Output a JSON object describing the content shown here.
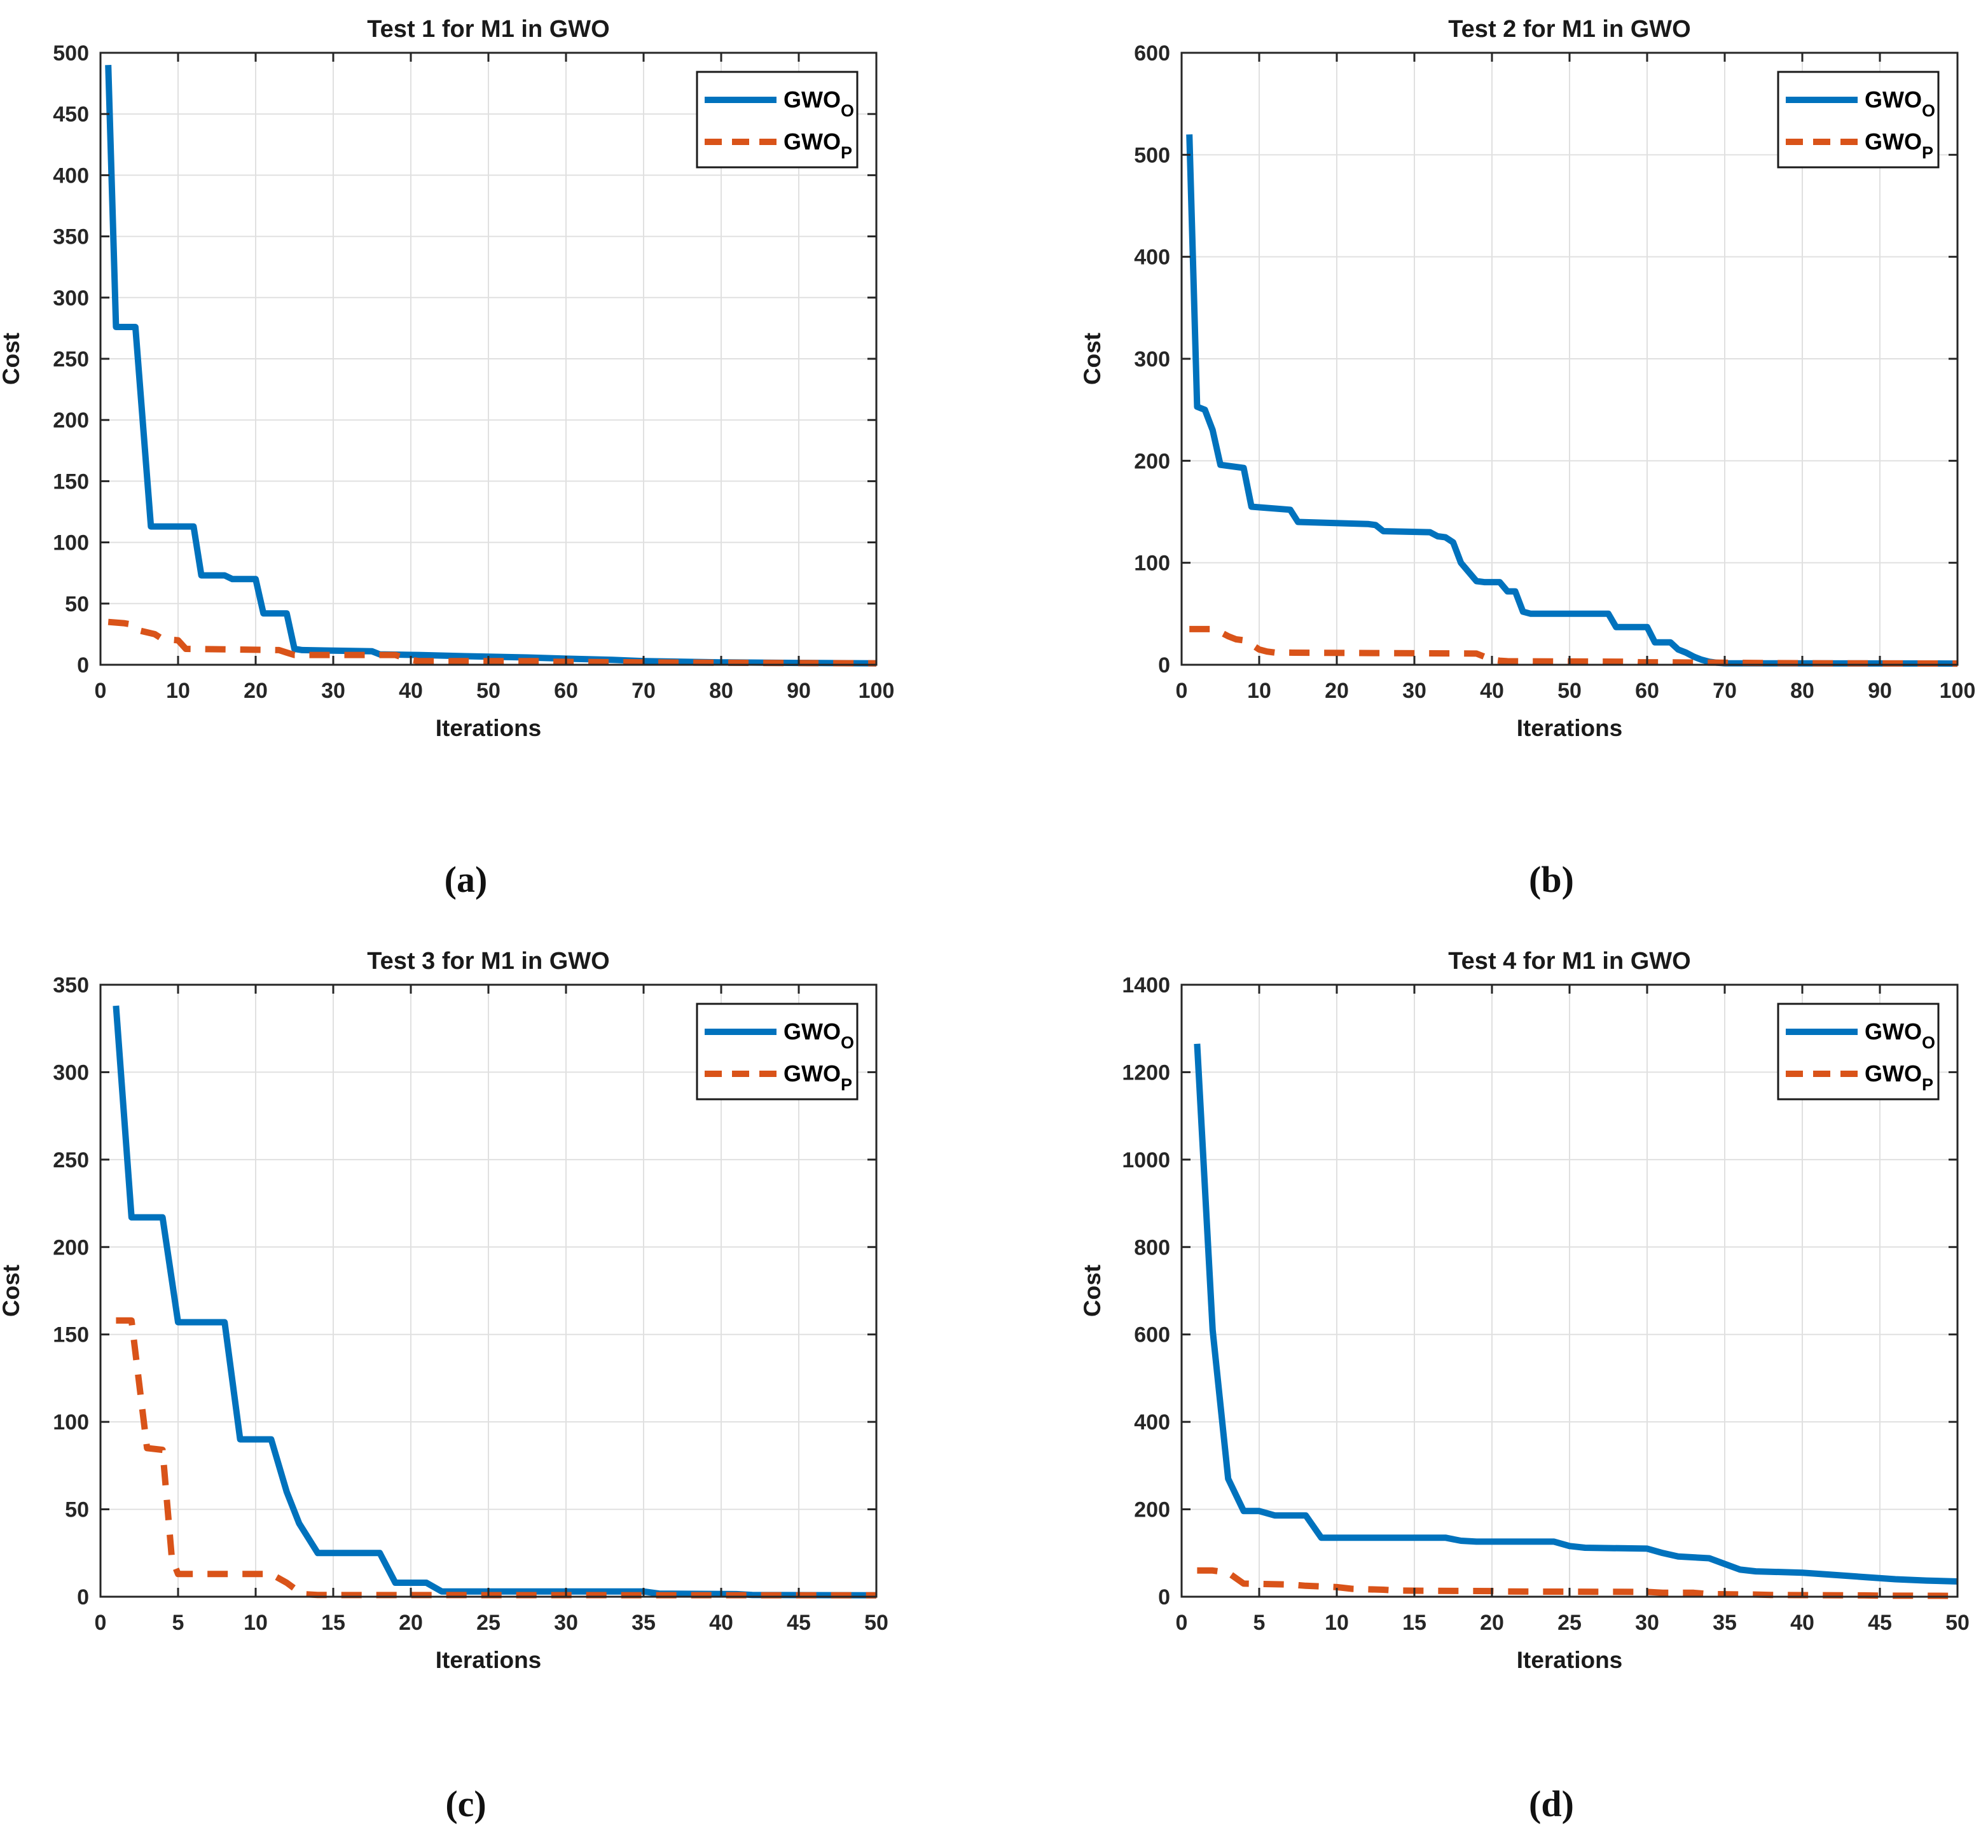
{
  "figure": {
    "background": "#ffffff",
    "axis_color": "#262626",
    "grid_color": "#e0e0e0",
    "accent_blue": "#0072BD",
    "accent_orange": "#D95319"
  },
  "chart_data": [
    {
      "type": "line",
      "title": "Test 1 for M1 in GWO",
      "panel_label": "(a)",
      "xlabel": "Iterations",
      "ylabel": "Cost",
      "xlim": [
        0,
        100
      ],
      "ylim": [
        0,
        500
      ],
      "xticks": [
        0,
        10,
        20,
        30,
        40,
        50,
        60,
        70,
        80,
        90,
        100
      ],
      "yticks": [
        0,
        50,
        100,
        150,
        200,
        250,
        300,
        350,
        400,
        450,
        500
      ],
      "grid": true,
      "legend": {
        "position": "top-right",
        "entries": [
          {
            "label": "GWO",
            "subscript": "O",
            "color": "#0072BD",
            "line_style": "solid"
          },
          {
            "label": "GWO",
            "subscript": "P",
            "color": "#D95319",
            "line_style": "dashed"
          }
        ]
      },
      "series": [
        {
          "name": "GWO_O",
          "color": "#0072BD",
          "style": "solid",
          "points": [
            [
              1,
              490
            ],
            [
              2,
              276
            ],
            [
              4.5,
              276
            ],
            [
              6.5,
              113
            ],
            [
              12,
              113
            ],
            [
              13,
              73
            ],
            [
              16,
              73
            ],
            [
              17,
              70
            ],
            [
              20,
              70
            ],
            [
              21,
              42
            ],
            [
              24,
              42
            ],
            [
              25,
              13
            ],
            [
              26,
              12
            ],
            [
              35,
              11
            ],
            [
              36,
              8.5
            ],
            [
              41,
              8
            ],
            [
              47,
              7
            ],
            [
              55,
              6
            ],
            [
              60,
              5
            ],
            [
              66,
              4
            ],
            [
              70,
              3
            ],
            [
              80,
              2
            ],
            [
              90,
              1.5
            ],
            [
              100,
              1.2
            ]
          ]
        },
        {
          "name": "GWO_P",
          "color": "#D95319",
          "style": "dashed",
          "points": [
            [
              1,
              35
            ],
            [
              3,
              34
            ],
            [
              4,
              33
            ],
            [
              5,
              28
            ],
            [
              7,
              25
            ],
            [
              8,
              21
            ],
            [
              10,
              20
            ],
            [
              11,
              13
            ],
            [
              23,
              12
            ],
            [
              24,
              10
            ],
            [
              25,
              8
            ],
            [
              38,
              8
            ],
            [
              39,
              6
            ],
            [
              40,
              4
            ],
            [
              41,
              3
            ],
            [
              57,
              3
            ],
            [
              58,
              2.5
            ],
            [
              70,
              2
            ],
            [
              85,
              1.5
            ],
            [
              100,
              1.2
            ]
          ]
        }
      ]
    },
    {
      "type": "line",
      "title": "Test 2 for M1 in GWO",
      "panel_label": "(b)",
      "xlabel": "Iterations",
      "ylabel": "Cost",
      "xlim": [
        0,
        100
      ],
      "ylim": [
        0,
        600
      ],
      "xticks": [
        0,
        10,
        20,
        30,
        40,
        50,
        60,
        70,
        80,
        90,
        100
      ],
      "yticks": [
        0,
        100,
        200,
        300,
        400,
        500,
        600
      ],
      "grid": true,
      "legend": {
        "position": "top-right",
        "entries": [
          {
            "label": "GWO",
            "subscript": "O",
            "color": "#0072BD",
            "line_style": "solid"
          },
          {
            "label": "GWO",
            "subscript": "P",
            "color": "#D95319",
            "line_style": "dashed"
          }
        ]
      },
      "series": [
        {
          "name": "GWO_O",
          "color": "#0072BD",
          "style": "solid",
          "points": [
            [
              1,
              520
            ],
            [
              2,
              253
            ],
            [
              3,
              250
            ],
            [
              4,
              230
            ],
            [
              5,
              196
            ],
            [
              8,
              193
            ],
            [
              9,
              155
            ],
            [
              14,
              152
            ],
            [
              15,
              140
            ],
            [
              24,
              138
            ],
            [
              25,
              137
            ],
            [
              26,
              131
            ],
            [
              32,
              130
            ],
            [
              33,
              126
            ],
            [
              34,
              125
            ],
            [
              35,
              120
            ],
            [
              36,
              100
            ],
            [
              37,
              91
            ],
            [
              38,
              82
            ],
            [
              39,
              81
            ],
            [
              41,
              81
            ],
            [
              42,
              72
            ],
            [
              43,
              72
            ],
            [
              44,
              52
            ],
            [
              45,
              50
            ],
            [
              55,
              50
            ],
            [
              56,
              37
            ],
            [
              60,
              37
            ],
            [
              61,
              22
            ],
            [
              63,
              22
            ],
            [
              64,
              15
            ],
            [
              65,
              12
            ],
            [
              66,
              8
            ],
            [
              67,
              5
            ],
            [
              68,
              3
            ],
            [
              69,
              2
            ],
            [
              70,
              1.5
            ],
            [
              100,
              1.2
            ]
          ]
        },
        {
          "name": "GWO_P",
          "color": "#D95319",
          "style": "dashed",
          "points": [
            [
              1,
              35
            ],
            [
              4,
              35
            ],
            [
              5,
              32
            ],
            [
              6,
              28
            ],
            [
              7,
              25
            ],
            [
              8,
              24
            ],
            [
              9,
              20
            ],
            [
              10,
              15
            ],
            [
              11,
              13
            ],
            [
              12,
              12
            ],
            [
              38,
              11
            ],
            [
              39,
              8
            ],
            [
              40,
              5
            ],
            [
              41,
              4
            ],
            [
              42,
              3.5
            ],
            [
              58,
              3
            ],
            [
              59,
              2.5
            ],
            [
              70,
              2
            ],
            [
              80,
              1.5
            ],
            [
              100,
              1.2
            ]
          ]
        }
      ]
    },
    {
      "type": "line",
      "title": "Test 3 for M1 in GWO",
      "panel_label": "(c)",
      "xlabel": "Iterations",
      "ylabel": "Cost",
      "xlim": [
        0,
        50
      ],
      "ylim": [
        0,
        350
      ],
      "xticks": [
        0,
        5,
        10,
        15,
        20,
        25,
        30,
        35,
        40,
        45,
        50
      ],
      "yticks": [
        0,
        50,
        100,
        150,
        200,
        250,
        300,
        350
      ],
      "grid": true,
      "legend": {
        "position": "top-right",
        "entries": [
          {
            "label": "GWO",
            "subscript": "O",
            "color": "#0072BD",
            "line_style": "solid"
          },
          {
            "label": "GWO",
            "subscript": "P",
            "color": "#D95319",
            "line_style": "dashed"
          }
        ]
      },
      "series": [
        {
          "name": "GWO_O",
          "color": "#0072BD",
          "style": "solid",
          "points": [
            [
              1,
              338
            ],
            [
              2,
              217
            ],
            [
              4,
              217
            ],
            [
              5,
              157
            ],
            [
              8,
              157
            ],
            [
              9,
              90
            ],
            [
              11,
              90
            ],
            [
              12,
              60
            ],
            [
              12.8,
              42
            ],
            [
              14,
              25
            ],
            [
              18,
              25
            ],
            [
              19,
              8
            ],
            [
              21,
              8
            ],
            [
              22,
              3
            ],
            [
              35,
              3
            ],
            [
              36,
              1.8
            ],
            [
              41,
              1.5
            ],
            [
              42,
              1
            ],
            [
              50,
              0.8
            ]
          ]
        },
        {
          "name": "GWO_P",
          "color": "#D95319",
          "style": "dashed",
          "points": [
            [
              1,
              158
            ],
            [
              2,
              158
            ],
            [
              3,
              85
            ],
            [
              4,
              84
            ],
            [
              4.6,
              22
            ],
            [
              5,
              13
            ],
            [
              11,
              13
            ],
            [
              12,
              8
            ],
            [
              13,
              1.5
            ],
            [
              14,
              1
            ],
            [
              50,
              0.8
            ]
          ]
        }
      ]
    },
    {
      "type": "line",
      "title": "Test 4 for M1 in GWO",
      "panel_label": "(d)",
      "xlabel": "Iterations",
      "ylabel": "Cost",
      "xlim": [
        0,
        50
      ],
      "ylim": [
        0,
        1400
      ],
      "xticks": [
        0,
        5,
        10,
        15,
        20,
        25,
        30,
        35,
        40,
        45,
        50
      ],
      "yticks": [
        0,
        200,
        400,
        600,
        800,
        1000,
        1200,
        1400
      ],
      "grid": true,
      "legend": {
        "position": "top-right",
        "entries": [
          {
            "label": "GWO",
            "subscript": "O",
            "color": "#0072BD",
            "line_style": "solid"
          },
          {
            "label": "GWO",
            "subscript": "P",
            "color": "#D95319",
            "line_style": "dashed"
          }
        ]
      },
      "series": [
        {
          "name": "GWO_O",
          "color": "#0072BD",
          "style": "solid",
          "points": [
            [
              1,
              1265
            ],
            [
              2,
              610
            ],
            [
              3,
              270
            ],
            [
              4,
              196
            ],
            [
              5,
              196
            ],
            [
              6,
              186
            ],
            [
              8,
              186
            ],
            [
              9,
              135
            ],
            [
              17,
              135
            ],
            [
              18,
              128
            ],
            [
              19,
              126
            ],
            [
              24,
              126
            ],
            [
              25,
              116
            ],
            [
              26,
              112
            ],
            [
              30,
              110
            ],
            [
              31,
              100
            ],
            [
              32,
              92
            ],
            [
              34,
              88
            ],
            [
              35,
              75
            ],
            [
              36,
              62
            ],
            [
              37,
              58
            ],
            [
              40,
              55
            ],
            [
              42,
              50
            ],
            [
              44,
              45
            ],
            [
              46,
              40
            ],
            [
              48,
              37
            ],
            [
              50,
              35
            ]
          ]
        },
        {
          "name": "GWO_P",
          "color": "#D95319",
          "style": "dashed",
          "points": [
            [
              1,
              60
            ],
            [
              2,
              60
            ],
            [
              3,
              55
            ],
            [
              4,
              30
            ],
            [
              7,
              28
            ],
            [
              8,
              25
            ],
            [
              10,
              22
            ],
            [
              11,
              18
            ],
            [
              13,
              16
            ],
            [
              14,
              14
            ],
            [
              20,
              13
            ],
            [
              21,
              12
            ],
            [
              30,
              11
            ],
            [
              31,
              9
            ],
            [
              33,
              9
            ],
            [
              34,
              6
            ],
            [
              37,
              5
            ],
            [
              38,
              4
            ],
            [
              44,
              3
            ],
            [
              45,
              2.5
            ],
            [
              50,
              2
            ]
          ]
        }
      ]
    }
  ]
}
